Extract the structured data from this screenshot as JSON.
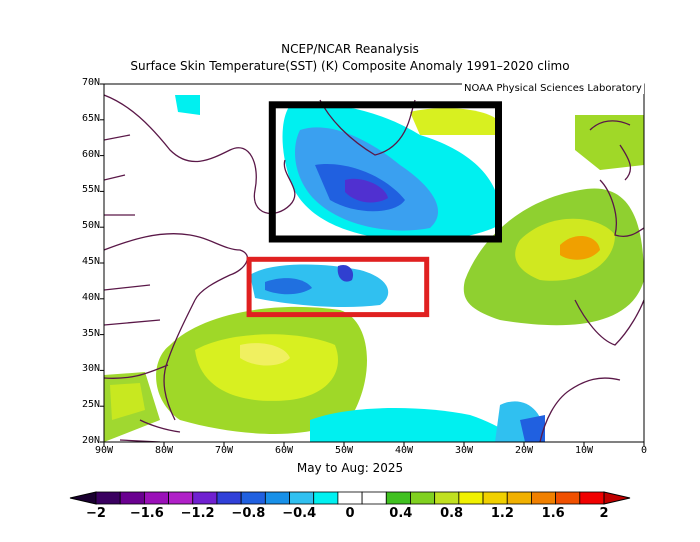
{
  "header": {
    "title": "NCEP/NCAR Reanalysis",
    "subtitle": "Surface Skin Temperature(SST) (K) Composite Anomaly 1991–2020 climo",
    "credit": "NOAA Physical Sciences Laboratory"
  },
  "map": {
    "period": "May to Aug: 2025",
    "lat_labels": [
      "70N",
      "65N",
      "60N",
      "55N",
      "50N",
      "45N",
      "40N",
      "35N",
      "30N",
      "25N",
      "20N"
    ],
    "lon_labels": [
      "90W",
      "80W",
      "70W",
      "60W",
      "50W",
      "40W",
      "30W",
      "20W",
      "10W",
      "0"
    ],
    "boxes": [
      {
        "name": "subpolar-box",
        "color": "#000000",
        "lon": [
          -63,
          -24
        ],
        "lat": [
          47,
          67
        ]
      },
      {
        "name": "gulf-stream-box",
        "color": "#e02020",
        "lon": [
          -66,
          -36
        ],
        "lat": [
          38,
          45
        ]
      }
    ]
  },
  "colorbar": {
    "labels": [
      "−2",
      "−1.6",
      "−1.2",
      "−0.8",
      "−0.4",
      "0",
      "0.4",
      "0.8",
      "1.2",
      "1.6",
      "2"
    ],
    "colors": [
      "#3a0060",
      "#6a0090",
      "#9a10b8",
      "#b020c8",
      "#7020d0",
      "#3040d8",
      "#2060e0",
      "#1890e8",
      "#30c0f0",
      "#00f0f0",
      "#ffffff",
      "#ffffff",
      "#40c020",
      "#80d020",
      "#c0e020",
      "#f0f000",
      "#f0d000",
      "#f0b000",
      "#f08000",
      "#f05000",
      "#f00000"
    ]
  }
}
